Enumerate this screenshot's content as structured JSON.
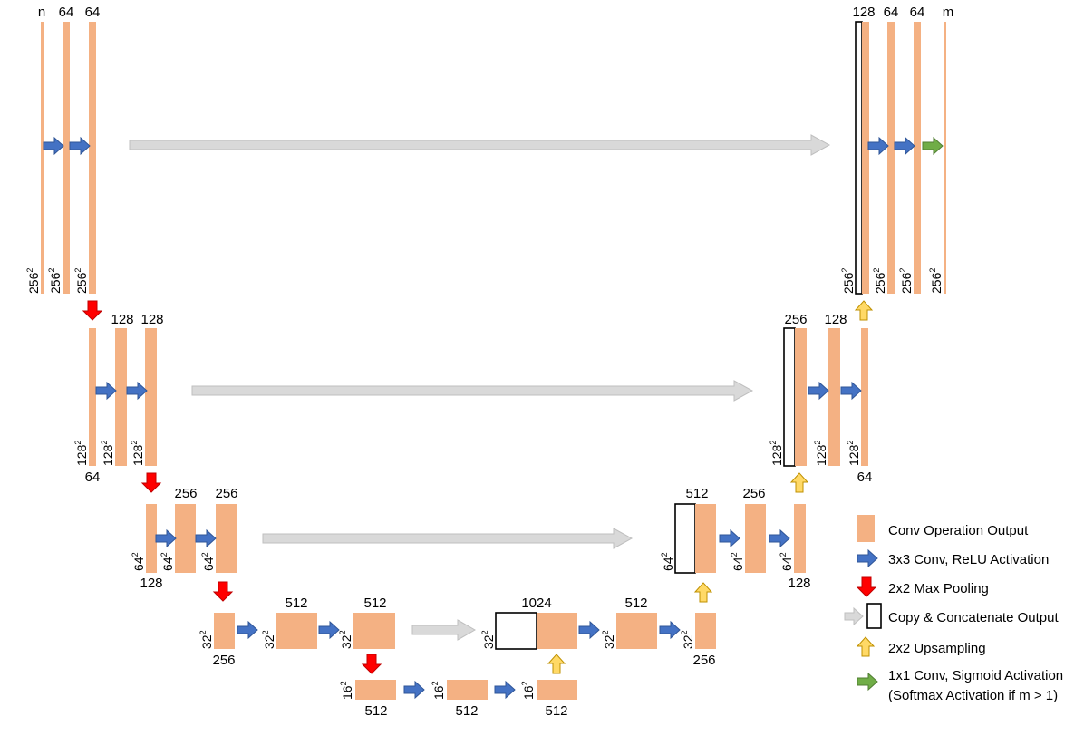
{
  "colors": {
    "feature_map": "#f4b183",
    "conv_arrow": "#4472c4",
    "pool_arrow": "#ff0000",
    "copy_arrow": "#d9d9d9",
    "up_arrow": "#ffd966",
    "final_arrow": "#70ad47"
  },
  "level1": {
    "channels": [
      "n",
      "64",
      "64"
    ],
    "dims": [
      "256",
      "256",
      "256"
    ],
    "dec_channels": [
      "128",
      "64",
      "64",
      "m"
    ],
    "dec_dims": [
      "256",
      "256",
      "256",
      "256"
    ]
  },
  "level2": {
    "channels": [
      "128",
      "128"
    ],
    "bottom_channel": "64",
    "dims": [
      "128",
      "128",
      "128"
    ],
    "dec_channels": [
      "256",
      "128"
    ],
    "dec_bottom_channel": "64",
    "dec_dims": [
      "128",
      "128",
      "128"
    ]
  },
  "level3": {
    "channels": [
      "256",
      "256"
    ],
    "bottom_channel": "128",
    "dims": [
      "64",
      "64",
      "64"
    ],
    "dec_channels": [
      "512",
      "256"
    ],
    "dec_bottom_channel": "128",
    "dec_dims": [
      "64",
      "64",
      "64"
    ]
  },
  "level4": {
    "channels": [
      "512",
      "512"
    ],
    "bottom_channel": "256",
    "dims": [
      "32",
      "32",
      "32"
    ],
    "dec_channels": [
      "1024",
      "512"
    ],
    "dec_bottom_channel": "256",
    "dec_dims": [
      "32",
      "32",
      "32"
    ]
  },
  "level5": {
    "channels": [
      "512",
      "512",
      "512"
    ],
    "dims": [
      "16",
      "16",
      "16"
    ]
  },
  "exponent": "2",
  "legend": {
    "conv_output": "Conv Operation Output",
    "conv_relu": "3x3 Conv, ReLU Activation",
    "max_pool": "2x2 Max Pooling",
    "copy_concat": "Copy & Concatenate Output",
    "upsampling": "2x2 Upsampling",
    "final_conv_line1": "1x1 Conv, Sigmoid Activation",
    "final_conv_line2": "(Softmax Activation if m > 1)"
  }
}
